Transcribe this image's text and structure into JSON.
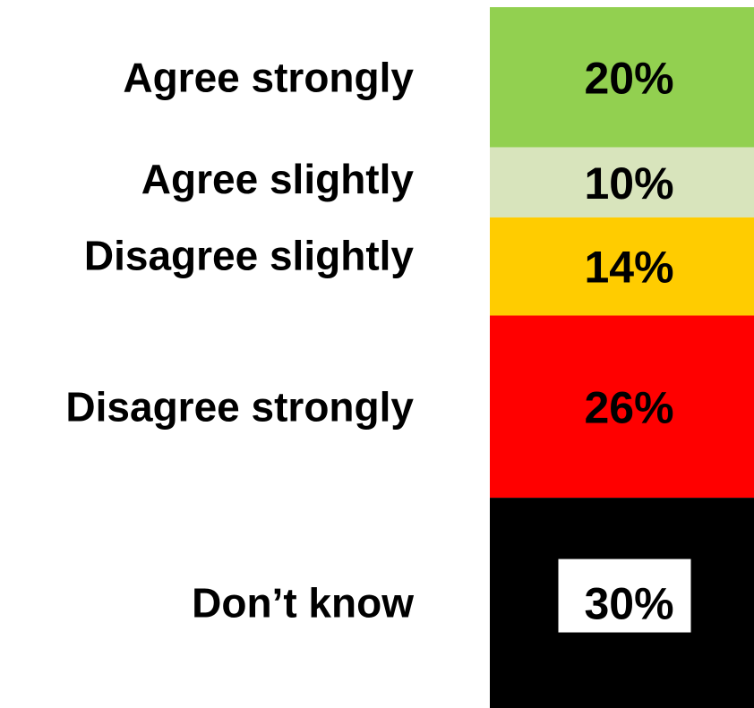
{
  "chart_data": {
    "type": "bar",
    "subtype": "100%-stacked-single-column",
    "categories": [
      "Agree strongly",
      "Agree slightly",
      "Disagree slightly",
      "Disagree strongly",
      "Don’t know"
    ],
    "values": [
      20,
      10,
      14,
      26,
      30
    ],
    "value_labels": [
      "20%",
      "10%",
      "14%",
      "26%",
      "30%"
    ],
    "colors": [
      "#92d050",
      "#d8e4bc",
      "#ffcc00",
      "#ff0000",
      "#000000"
    ],
    "value_label_styles": [
      {
        "color": "#000000",
        "weight": "bold",
        "background": null
      },
      {
        "color": "#000000",
        "weight": "bold",
        "background": null
      },
      {
        "color": "#000000",
        "weight": "bold",
        "background": null
      },
      {
        "color": "#000000",
        "weight": "normal",
        "background": null
      },
      {
        "color": "#000000",
        "weight": "bold",
        "background": "#ffffff"
      }
    ],
    "title": "",
    "xlabel": "",
    "ylabel": "",
    "legend": "none",
    "grid": false
  }
}
